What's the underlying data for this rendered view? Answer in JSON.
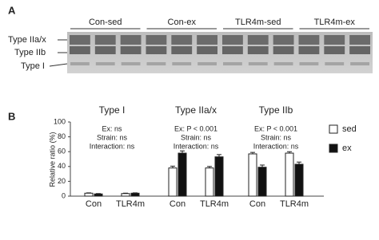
{
  "gel": {
    "panel_label": "A",
    "groups": [
      "Con-sed",
      "Con-ex",
      "TLR4m-sed",
      "TLR4m-ex"
    ],
    "bands": [
      "Type IIa/x",
      "Type IIb",
      "Type I"
    ]
  },
  "chart_data": {
    "type": "bar",
    "panel_label": "B",
    "ylabel": "Relative ratio (%)",
    "ylim": [
      0,
      100
    ],
    "yticks": [
      0,
      20,
      40,
      60,
      80,
      100
    ],
    "categories": [
      "Con",
      "TLR4m",
      "Con",
      "TLR4m",
      "Con",
      "TLR4m"
    ],
    "groups": [
      {
        "title": "Type I",
        "annotations": [
          "Ex: ns",
          "Strain: ns",
          "Interaction: ns"
        ]
      },
      {
        "title": "Type IIa/x",
        "annotations": [
          "Ex: P < 0.001",
          "Strain: ns",
          "Interaction: ns"
        ]
      },
      {
        "title": "Type IIb",
        "annotations": [
          "Ex: P < 0.001",
          "Strain: ns",
          "Interaction: ns"
        ]
      }
    ],
    "series": [
      {
        "name": "sed",
        "color": "#ffffff",
        "values": [
          4,
          3.5,
          38,
          38,
          57,
          58
        ],
        "errors": [
          0.5,
          0.5,
          2.5,
          2,
          2,
          2
        ]
      },
      {
        "name": "ex",
        "color": "#111111",
        "values": [
          3,
          4,
          58,
          53,
          39,
          43
        ],
        "errors": [
          0.5,
          0.5,
          3,
          3,
          3,
          3
        ]
      }
    ]
  }
}
